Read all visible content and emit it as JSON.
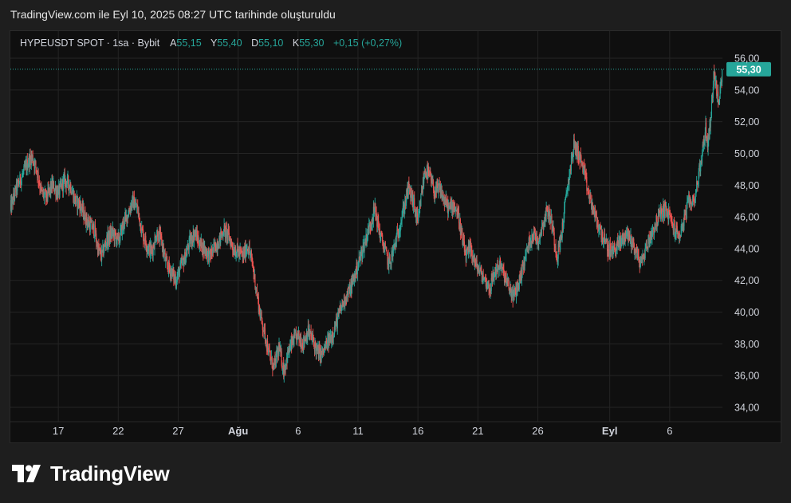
{
  "caption": "TradingView.com ile Eyl 10, 2025 08:27 UTC tarihinde oluşturuldu",
  "legend": {
    "symbol": "HYPEUSDT SPOT · 1sa · Bybit",
    "open_label": "A",
    "open": "55,15",
    "high_label": "Y",
    "high": "55,40",
    "low_label": "D",
    "low": "55,10",
    "close_label": "K",
    "close": "55,30",
    "change": "+0,15 (+0,27%)"
  },
  "brand": {
    "name": "TradingView",
    "logo_icon": "tradingview-logo-icon"
  },
  "colors": {
    "up": "#26a69a",
    "down": "#ef5350",
    "grid": "#242424",
    "price_tag": "#26a69a"
  },
  "chart_data": {
    "type": "candlestick",
    "interval": "1h",
    "ylim": [
      33.0,
      57.0
    ],
    "y_ticks": [
      "34,00",
      "36,00",
      "38,00",
      "40,00",
      "42,00",
      "44,00",
      "46,00",
      "48,00",
      "50,00",
      "52,00",
      "54,00",
      "56,00"
    ],
    "y_tick_values": [
      34,
      36,
      38,
      40,
      42,
      44,
      46,
      48,
      50,
      52,
      54,
      56
    ],
    "x_ticks": [
      "17",
      "22",
      "27",
      "Ağu",
      "6",
      "11",
      "16",
      "21",
      "26",
      "Eyl",
      "6"
    ],
    "x_tick_days": [
      4,
      9,
      14,
      19,
      24,
      29,
      34,
      39,
      44,
      50,
      55
    ],
    "x_range_days": [
      0,
      59.4
    ],
    "last_price": 55.3,
    "last_price_label": "55,30",
    "path": [
      [
        0.0,
        46.5
      ],
      [
        0.5,
        47.8
      ],
      [
        1.0,
        48.6
      ],
      [
        1.5,
        49.5
      ],
      [
        1.8,
        49.8
      ],
      [
        2.2,
        49.0
      ],
      [
        2.6,
        47.5
      ],
      [
        3.0,
        47.2
      ],
      [
        3.5,
        48.0
      ],
      [
        4.0,
        47.5
      ],
      [
        4.5,
        48.3
      ],
      [
        5.0,
        48.0
      ],
      [
        5.4,
        47.0
      ],
      [
        5.8,
        46.8
      ],
      [
        6.2,
        46.0
      ],
      [
        6.6,
        45.5
      ],
      [
        7.0,
        45.2
      ],
      [
        7.3,
        44.0
      ],
      [
        7.6,
        43.5
      ],
      [
        8.0,
        44.5
      ],
      [
        8.5,
        45.0
      ],
      [
        9.0,
        44.5
      ],
      [
        9.4,
        45.5
      ],
      [
        9.8,
        46.2
      ],
      [
        10.2,
        47.0
      ],
      [
        10.6,
        46.5
      ],
      [
        11.0,
        45.0
      ],
      [
        11.4,
        44.2
      ],
      [
        11.8,
        43.8
      ],
      [
        12.2,
        45.0
      ],
      [
        12.6,
        44.5
      ],
      [
        13.0,
        43.0
      ],
      [
        13.4,
        42.6
      ],
      [
        13.8,
        42.0
      ],
      [
        14.2,
        42.8
      ],
      [
        14.6,
        43.5
      ],
      [
        15.0,
        44.5
      ],
      [
        15.4,
        45.0
      ],
      [
        15.8,
        44.3
      ],
      [
        16.2,
        44.0
      ],
      [
        16.6,
        43.5
      ],
      [
        17.0,
        44.0
      ],
      [
        17.4,
        44.5
      ],
      [
        17.8,
        45.2
      ],
      [
        18.2,
        44.8
      ],
      [
        18.6,
        44.0
      ],
      [
        19.0,
        43.8
      ],
      [
        19.4,
        43.5
      ],
      [
        19.8,
        44.2
      ],
      [
        20.2,
        43.0
      ],
      [
        20.5,
        41.5
      ],
      [
        20.8,
        40.0
      ],
      [
        21.1,
        39.0
      ],
      [
        21.4,
        38.0
      ],
      [
        21.7,
        37.0
      ],
      [
        22.0,
        36.5
      ],
      [
        22.4,
        37.8
      ],
      [
        22.8,
        36.3
      ],
      [
        23.2,
        37.5
      ],
      [
        23.6,
        38.2
      ],
      [
        24.0,
        38.5
      ],
      [
        24.4,
        38.0
      ],
      [
        24.8,
        38.8
      ],
      [
        25.2,
        38.3
      ],
      [
        25.6,
        37.5
      ],
      [
        26.0,
        37.3
      ],
      [
        26.4,
        38.0
      ],
      [
        26.8,
        38.5
      ],
      [
        27.2,
        39.3
      ],
      [
        27.6,
        40.3
      ],
      [
        28.0,
        41.0
      ],
      [
        28.4,
        41.5
      ],
      [
        28.8,
        42.5
      ],
      [
        29.2,
        43.5
      ],
      [
        29.6,
        44.5
      ],
      [
        30.0,
        45.5
      ],
      [
        30.4,
        46.5
      ],
      [
        30.8,
        45.0
      ],
      [
        31.2,
        44.0
      ],
      [
        31.6,
        43.0
      ],
      [
        32.0,
        44.0
      ],
      [
        32.4,
        45.2
      ],
      [
        32.8,
        46.5
      ],
      [
        33.2,
        47.8
      ],
      [
        33.6,
        47.0
      ],
      [
        34.0,
        45.5
      ],
      [
        34.3,
        47.5
      ],
      [
        34.6,
        49.0
      ],
      [
        35.0,
        48.5
      ],
      [
        35.4,
        47.5
      ],
      [
        35.8,
        47.8
      ],
      [
        36.2,
        47.0
      ],
      [
        36.6,
        46.5
      ],
      [
        37.0,
        46.8
      ],
      [
        37.4,
        46.0
      ],
      [
        37.7,
        44.5
      ],
      [
        38.0,
        43.5
      ],
      [
        38.4,
        44.0
      ],
      [
        38.8,
        43.0
      ],
      [
        39.2,
        42.5
      ],
      [
        39.6,
        42.0
      ],
      [
        40.0,
        41.5
      ],
      [
        40.4,
        42.5
      ],
      [
        40.8,
        43.0
      ],
      [
        41.2,
        42.3
      ],
      [
        41.6,
        41.5
      ],
      [
        42.0,
        41.0
      ],
      [
        42.4,
        41.8
      ],
      [
        42.8,
        43.0
      ],
      [
        43.2,
        44.2
      ],
      [
        43.6,
        45.0
      ],
      [
        44.0,
        44.5
      ],
      [
        44.4,
        45.5
      ],
      [
        44.8,
        46.5
      ],
      [
        45.2,
        45.5
      ],
      [
        45.6,
        43.5
      ],
      [
        46.0,
        45.0
      ],
      [
        46.4,
        47.5
      ],
      [
        46.8,
        49.5
      ],
      [
        47.0,
        50.5
      ],
      [
        47.4,
        50.0
      ],
      [
        47.8,
        49.0
      ],
      [
        48.2,
        47.5
      ],
      [
        48.6,
        46.5
      ],
      [
        49.0,
        45.5
      ],
      [
        49.4,
        44.8
      ],
      [
        49.8,
        44.0
      ],
      [
        50.2,
        43.8
      ],
      [
        50.6,
        44.2
      ],
      [
        51.0,
        44.5
      ],
      [
        51.4,
        45.0
      ],
      [
        51.8,
        44.5
      ],
      [
        52.2,
        43.8
      ],
      [
        52.6,
        43.0
      ],
      [
        53.0,
        44.0
      ],
      [
        53.4,
        44.8
      ],
      [
        53.8,
        45.5
      ],
      [
        54.2,
        46.2
      ],
      [
        54.6,
        46.5
      ],
      [
        55.0,
        46.0
      ],
      [
        55.4,
        45.2
      ],
      [
        55.8,
        44.8
      ],
      [
        56.2,
        45.8
      ],
      [
        56.6,
        47.0
      ],
      [
        57.0,
        47.0
      ],
      [
        57.4,
        48.5
      ],
      [
        57.8,
        50.5
      ],
      [
        58.0,
        51.5
      ],
      [
        58.2,
        50.5
      ],
      [
        58.5,
        53.0
      ],
      [
        58.7,
        55.2
      ],
      [
        58.9,
        54.0
      ],
      [
        59.1,
        53.0
      ],
      [
        59.3,
        54.6
      ],
      [
        59.4,
        55.3
      ]
    ]
  }
}
